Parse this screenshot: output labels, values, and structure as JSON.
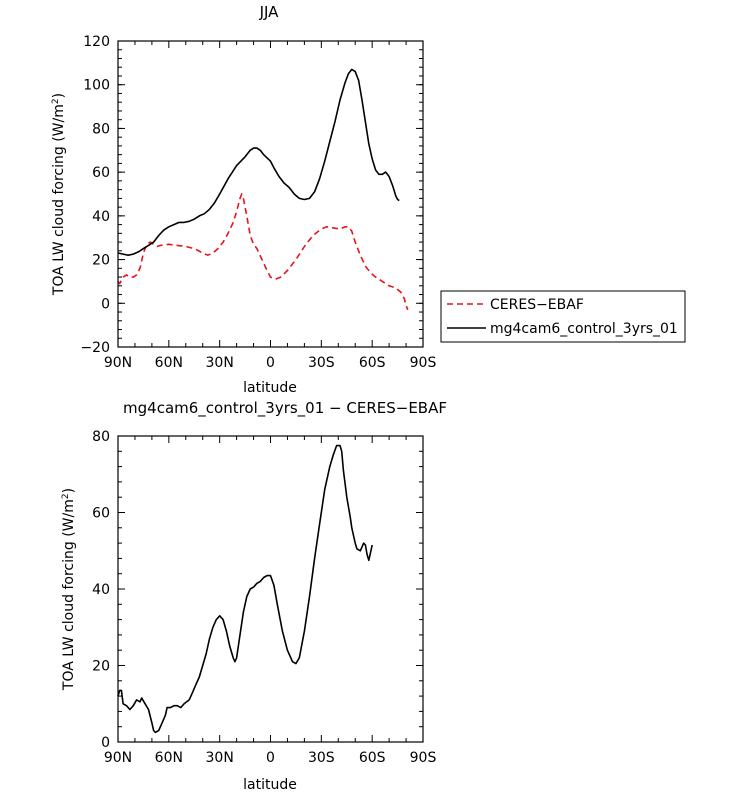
{
  "chart_data": [
    {
      "type": "line",
      "title": "JJA",
      "xlabel": "latitude",
      "ylabel": "TOA LW cloud forcing (W/m²)",
      "ylabel_main": "TOA LW cloud forcing (W/m",
      "ylabel_sup": "2",
      "ylabel_close": ")",
      "xlim": [
        -90,
        90
      ],
      "ylim": [
        -20,
        120
      ],
      "x_ticks": [
        -90,
        -60,
        -30,
        0,
        30,
        60,
        90
      ],
      "x_tick_labels": [
        "90N",
        "60N",
        "30N",
        "0",
        "30S",
        "60S",
        "90S"
      ],
      "y_ticks": [
        -20,
        0,
        20,
        40,
        60,
        80,
        100,
        120
      ],
      "y_tick_labels": [
        "−20",
        "0",
        "20",
        "40",
        "60",
        "80",
        "100",
        "120"
      ],
      "legend": {
        "placement": "right",
        "entries": [
          "CERES−EBAF",
          "mg4cam6_control_3yrs_01"
        ]
      },
      "series": [
        {
          "name": "CERES−EBAF",
          "color": "#e8141a",
          "dash": "dashed",
          "points": [
            [
              -90,
              10
            ],
            [
              -89,
              9
            ],
            [
              -87,
              12
            ],
            [
              -85,
              13
            ],
            [
              -83,
              12
            ],
            [
              -81,
              12
            ],
            [
              -79,
              13
            ],
            [
              -77,
              16
            ],
            [
              -75,
              23
            ],
            [
              -73,
              27
            ],
            [
              -71,
              28
            ],
            [
              -69,
              27
            ],
            [
              -67,
              26
            ],
            [
              -65,
              26.5
            ],
            [
              -60,
              27
            ],
            [
              -55,
              26.5
            ],
            [
              -50,
              26
            ],
            [
              -45,
              25
            ],
            [
              -40,
              23
            ],
            [
              -37,
              22
            ],
            [
              -34,
              23
            ],
            [
              -31,
              25
            ],
            [
              -28,
              28
            ],
            [
              -25,
              32
            ],
            [
              -22,
              37
            ],
            [
              -20,
              42
            ],
            [
              -18,
              48
            ],
            [
              -17,
              50
            ],
            [
              -16,
              48
            ],
            [
              -14,
              40
            ],
            [
              -12,
              31
            ],
            [
              -10,
              27
            ],
            [
              -8,
              25
            ],
            [
              -5,
              20
            ],
            [
              -2,
              15
            ],
            [
              0,
              12
            ],
            [
              3,
              11
            ],
            [
              6,
              12
            ],
            [
              10,
              15
            ],
            [
              15,
              20
            ],
            [
              20,
              26
            ],
            [
              25,
              31
            ],
            [
              30,
              34
            ],
            [
              33,
              35
            ],
            [
              37,
              34.5
            ],
            [
              41,
              34
            ],
            [
              44,
              35
            ],
            [
              46,
              35
            ],
            [
              48,
              33
            ],
            [
              50,
              28
            ],
            [
              53,
              22
            ],
            [
              56,
              17
            ],
            [
              59,
              14
            ],
            [
              62,
              12
            ],
            [
              66,
              10
            ],
            [
              70,
              8
            ],
            [
              74,
              7
            ],
            [
              77,
              5
            ],
            [
              79,
              2
            ],
            [
              80,
              -1
            ],
            [
              81,
              -3
            ]
          ]
        },
        {
          "name": "mg4cam6_control_3yrs_01",
          "color": "#000000",
          "dash": "solid",
          "points": [
            [
              -90,
              23
            ],
            [
              -87,
              22.5
            ],
            [
              -84,
              22
            ],
            [
              -81,
              22.5
            ],
            [
              -78,
              23.5
            ],
            [
              -75,
              25
            ],
            [
              -72,
              26.5
            ],
            [
              -69,
              28
            ],
            [
              -66,
              31
            ],
            [
              -63,
              33.5
            ],
            [
              -60,
              35
            ],
            [
              -57,
              36
            ],
            [
              -54,
              37
            ],
            [
              -51,
              37
            ],
            [
              -48,
              37.5
            ],
            [
              -45,
              38.5
            ],
            [
              -42,
              40
            ],
            [
              -39,
              41
            ],
            [
              -36,
              43
            ],
            [
              -33,
              46
            ],
            [
              -30,
              50
            ],
            [
              -25,
              57
            ],
            [
              -20,
              63
            ],
            [
              -15,
              67
            ],
            [
              -12,
              70
            ],
            [
              -10,
              71
            ],
            [
              -8,
              71
            ],
            [
              -6,
              70
            ],
            [
              -4,
              68
            ],
            [
              -2,
              66.5
            ],
            [
              0,
              65
            ],
            [
              2,
              62
            ],
            [
              5,
              58
            ],
            [
              8,
              55
            ],
            [
              11,
              53
            ],
            [
              14,
              50
            ],
            [
              17,
              48
            ],
            [
              20,
              47.5
            ],
            [
              23,
              48
            ],
            [
              26,
              51
            ],
            [
              29,
              57
            ],
            [
              32,
              65
            ],
            [
              35,
              74
            ],
            [
              38,
              83
            ],
            [
              41,
              93
            ],
            [
              44,
              101
            ],
            [
              46,
              105
            ],
            [
              48,
              107
            ],
            [
              50,
              106
            ],
            [
              52,
              102
            ],
            [
              54,
              93
            ],
            [
              56,
              83
            ],
            [
              58,
              73
            ],
            [
              60,
              66
            ],
            [
              62,
              61
            ],
            [
              64,
              59
            ],
            [
              66,
              59
            ],
            [
              68,
              60
            ],
            [
              70,
              58
            ],
            [
              72,
              54
            ],
            [
              74,
              49
            ],
            [
              75,
              47.5
            ],
            [
              76,
              47
            ]
          ]
        }
      ]
    },
    {
      "type": "line",
      "title": "mg4cam6_control_3yrs_01 − CERES−EBAF",
      "xlabel": "latitude",
      "ylabel": "TOA LW cloud forcing (W/m²)",
      "ylabel_main": "TOA LW cloud forcing (W/m",
      "ylabel_sup": "2",
      "ylabel_close": ")",
      "xlim": [
        -90,
        90
      ],
      "ylim": [
        0,
        80
      ],
      "x_ticks": [
        -90,
        -60,
        -30,
        0,
        30,
        60,
        90
      ],
      "x_tick_labels": [
        "90N",
        "60N",
        "30N",
        "0",
        "30S",
        "60S",
        "90S"
      ],
      "y_ticks": [
        0,
        20,
        40,
        60,
        80
      ],
      "y_tick_labels": [
        "0",
        "20",
        "40",
        "60",
        "80"
      ],
      "series": [
        {
          "color": "#000000",
          "dash": "solid",
          "points": [
            [
              -90,
              12
            ],
            [
              -89,
              13.5
            ],
            [
              -88,
              13.5
            ],
            [
              -87,
              10
            ],
            [
              -85,
              9.5
            ],
            [
              -83,
              8.5
            ],
            [
              -81,
              9.5
            ],
            [
              -79,
              11
            ],
            [
              -77,
              10.5
            ],
            [
              -76,
              11.5
            ],
            [
              -74,
              10
            ],
            [
              -72,
              8.5
            ],
            [
              -70,
              5
            ],
            [
              -69,
              3
            ],
            [
              -68,
              2.5
            ],
            [
              -66,
              3
            ],
            [
              -64,
              5
            ],
            [
              -62,
              7
            ],
            [
              -61,
              9
            ],
            [
              -59,
              9
            ],
            [
              -57,
              9.5
            ],
            [
              -55,
              9.5
            ],
            [
              -53,
              9
            ],
            [
              -51,
              10
            ],
            [
              -48,
              11
            ],
            [
              -46,
              13
            ],
            [
              -44,
              15
            ],
            [
              -42,
              17
            ],
            [
              -40,
              20
            ],
            [
              -38,
              23
            ],
            [
              -36,
              27
            ],
            [
              -34,
              30
            ],
            [
              -32,
              32
            ],
            [
              -30,
              33
            ],
            [
              -28,
              32
            ],
            [
              -26,
              29
            ],
            [
              -24,
              25
            ],
            [
              -22,
              22
            ],
            [
              -21,
              21
            ],
            [
              -20,
              22
            ],
            [
              -18,
              28
            ],
            [
              -16,
              34
            ],
            [
              -14,
              38
            ],
            [
              -12,
              40
            ],
            [
              -10,
              40.5
            ],
            [
              -8,
              41.5
            ],
            [
              -6,
              42
            ],
            [
              -4,
              43
            ],
            [
              -2,
              43.5
            ],
            [
              0,
              43.5
            ],
            [
              2,
              41
            ],
            [
              4,
              36
            ],
            [
              7,
              29
            ],
            [
              10,
              24
            ],
            [
              13,
              21
            ],
            [
              15,
              20.5
            ],
            [
              17,
              22
            ],
            [
              20,
              29
            ],
            [
              23,
              38
            ],
            [
              26,
              48
            ],
            [
              29,
              57
            ],
            [
              32,
              66
            ],
            [
              35,
              72
            ],
            [
              37,
              75
            ],
            [
              39,
              77.5
            ],
            [
              41,
              77.5
            ],
            [
              42,
              76
            ],
            [
              43,
              71
            ],
            [
              45,
              64
            ],
            [
              47,
              59
            ],
            [
              48,
              56
            ],
            [
              49,
              54
            ],
            [
              50,
              52
            ],
            [
              51,
              50.5
            ],
            [
              53,
              50
            ],
            [
              55,
              52
            ],
            [
              56,
              51.5
            ],
            [
              57,
              49
            ],
            [
              58,
              47.5
            ],
            [
              59,
              49.5
            ],
            [
              60,
              51.5
            ]
          ]
        }
      ]
    }
  ]
}
